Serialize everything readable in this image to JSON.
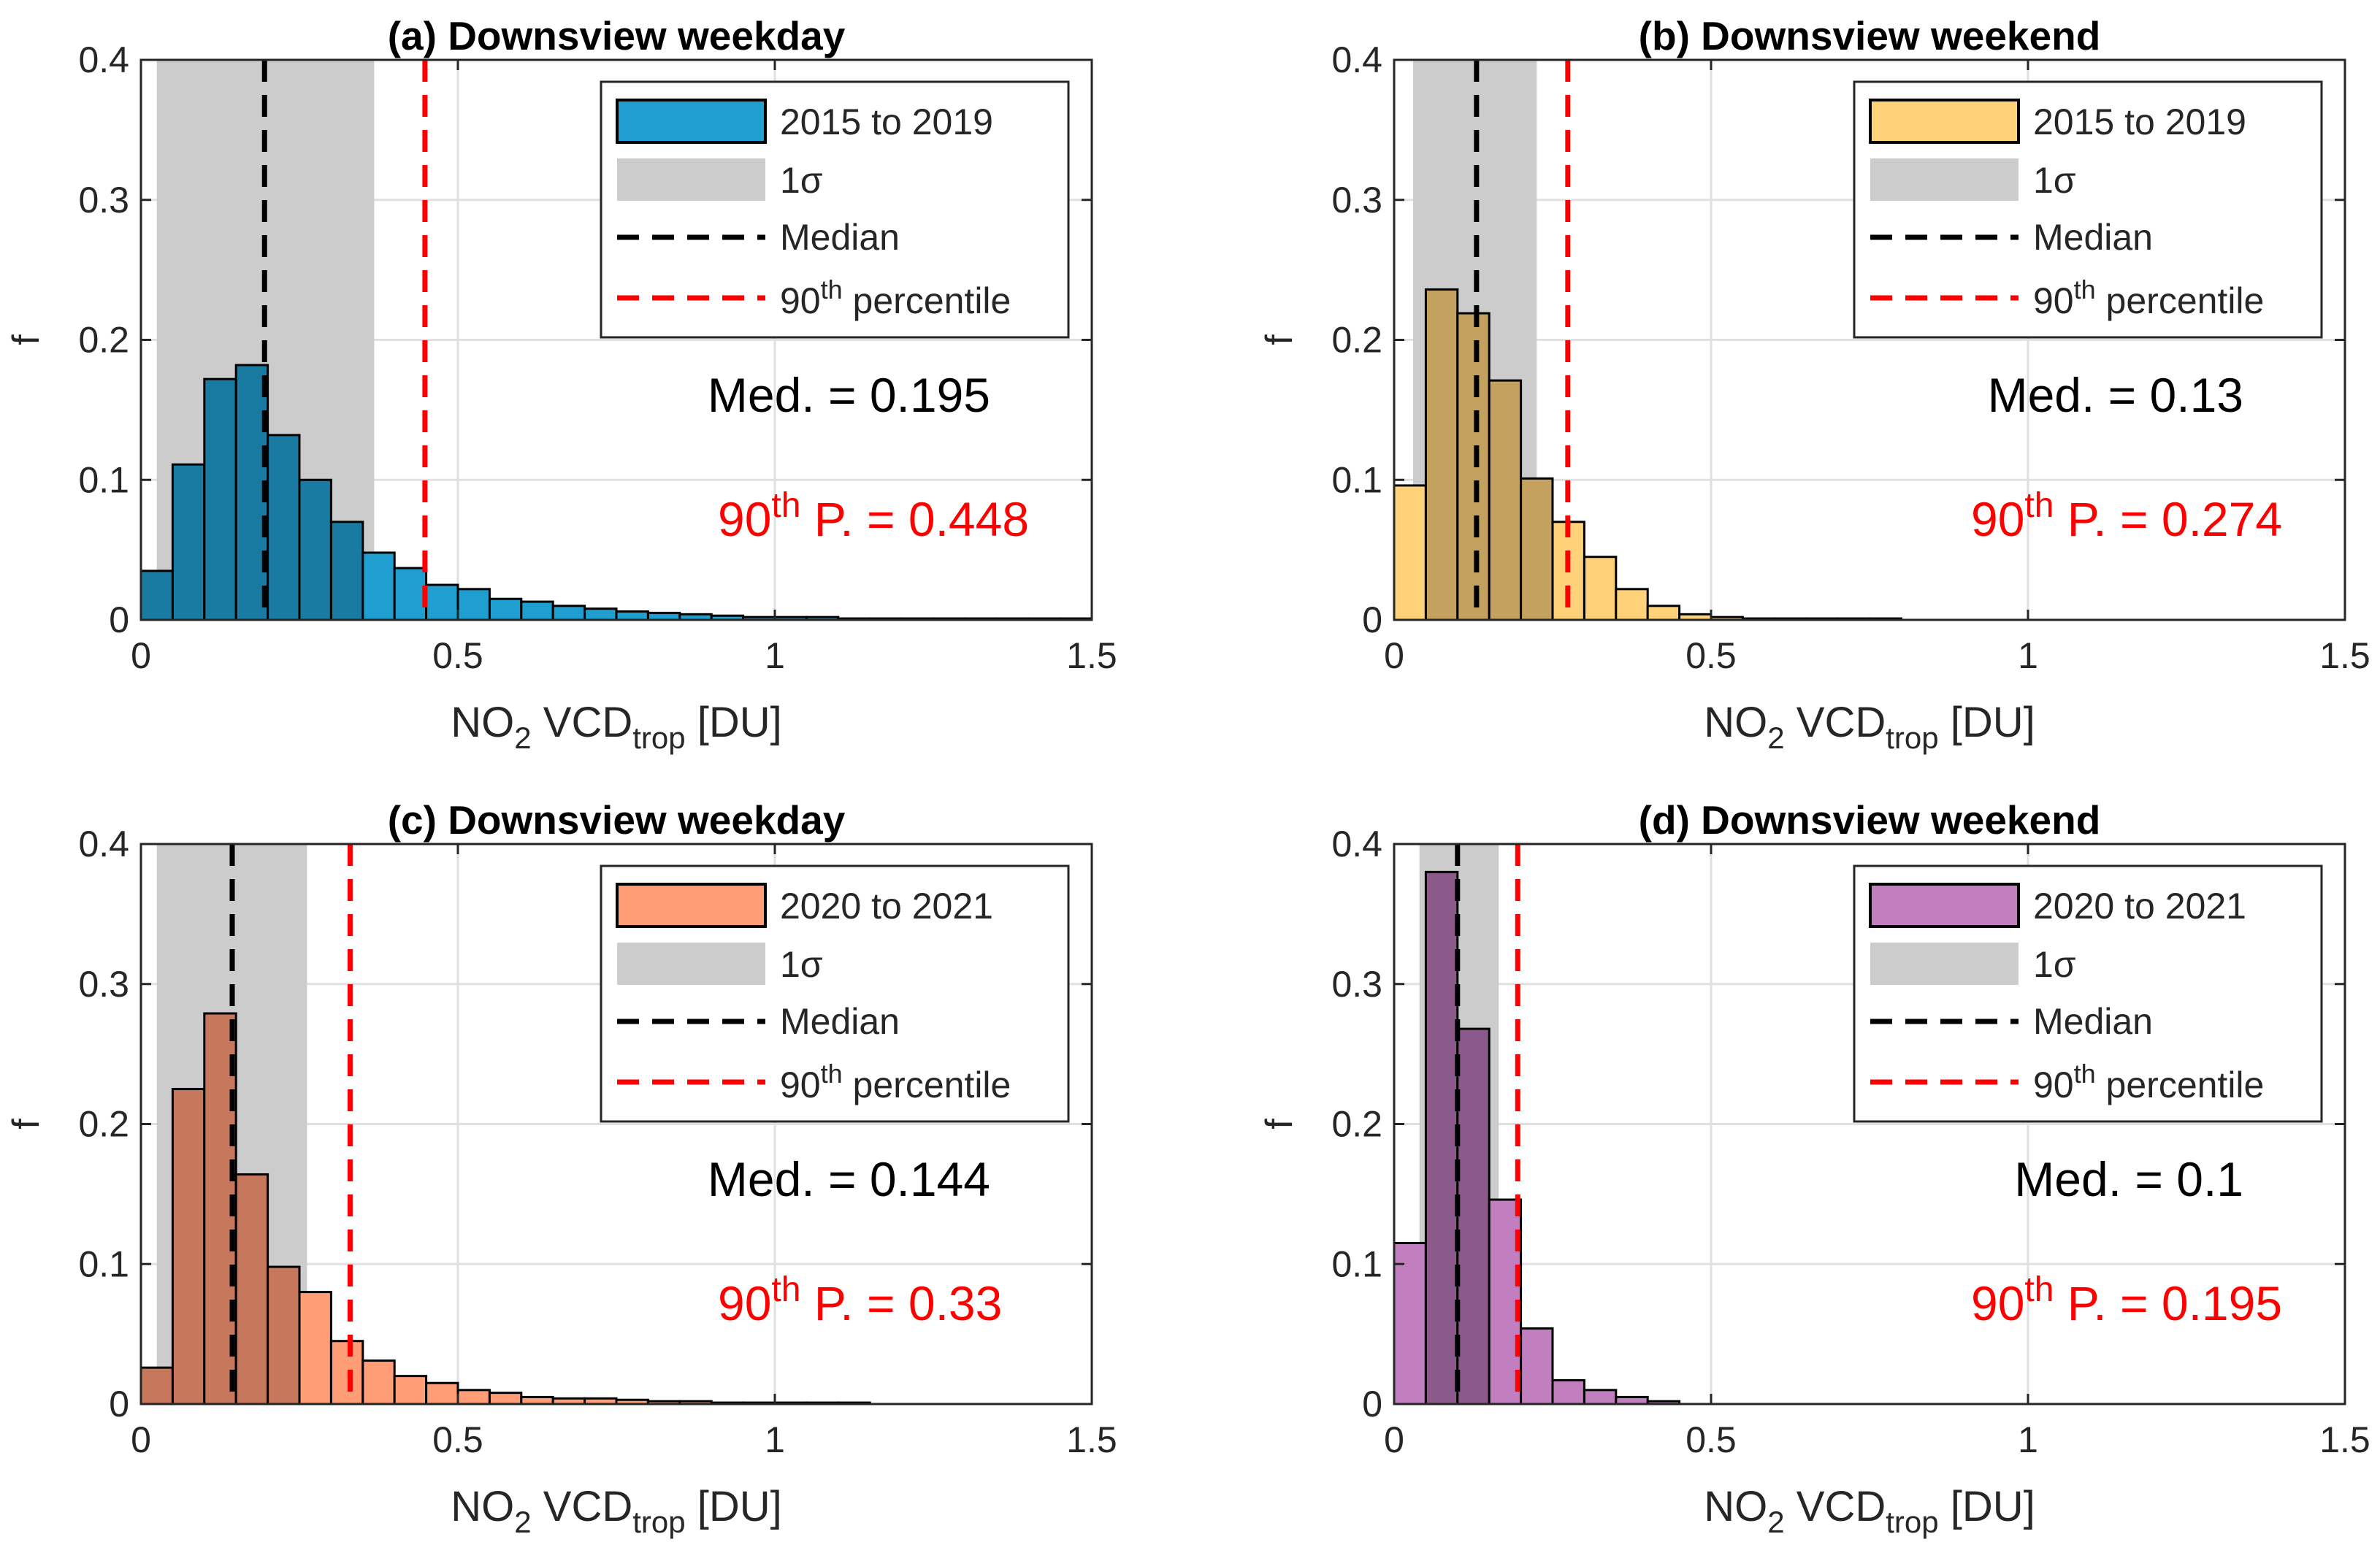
{
  "chart_data": [
    {
      "type": "bar",
      "title": "(a) Downsview weekday",
      "xlabel": {
        "main": "NO",
        "sub1": "2",
        "mid": " VCD",
        "sub2": "trop",
        "tail": " [DU]"
      },
      "ylabel": "f",
      "xlim": [
        0,
        1.5
      ],
      "ylim": [
        0,
        0.4
      ],
      "xticks": [
        "0",
        "0.5",
        "1",
        "1.5"
      ],
      "yticks": [
        "0",
        "0.1",
        "0.2",
        "0.3",
        "0.4"
      ],
      "bin_width": 0.05,
      "bin_start": 0,
      "values": [
        0.035,
        0.111,
        0.172,
        0.182,
        0.132,
        0.1,
        0.07,
        0.048,
        0.037,
        0.025,
        0.022,
        0.015,
        0.013,
        0.01,
        0.008,
        0.006,
        0.005,
        0.004,
        0.003,
        0.002,
        0.002,
        0.002,
        0.001,
        0.001,
        0.001,
        0.001,
        0.001,
        0.001,
        0.001,
        0.001
      ],
      "sigma_range": [
        0.025,
        0.368
      ],
      "median": 0.195,
      "p90": 0.448,
      "fill_color": "#1f9fd0",
      "dark_fill_color": "#1a7ba2",
      "legend": [
        {
          "key": "series",
          "label": "2015 to 2019"
        },
        {
          "key": "sigma",
          "label": "1σ"
        },
        {
          "key": "median",
          "label": "Median"
        },
        {
          "key": "p90",
          "label": "90",
          "sup": "th",
          "tail": " percentile"
        }
      ],
      "annotations": {
        "median_text": "Med. = 0.195",
        "p90_base": "90",
        "p90_sup": "th",
        "p90_tail": " P. = 0.448"
      }
    },
    {
      "type": "bar",
      "title": "(b) Downsview weekend",
      "xlabel": {
        "main": "NO",
        "sub1": "2",
        "mid": " VCD",
        "sub2": "trop",
        "tail": " [DU]"
      },
      "ylabel": "f",
      "xlim": [
        0,
        1.5
      ],
      "ylim": [
        0,
        0.4
      ],
      "xticks": [
        "0",
        "0.5",
        "1",
        "1.5"
      ],
      "yticks": [
        "0",
        "0.1",
        "0.2",
        "0.3",
        "0.4"
      ],
      "bin_width": 0.05,
      "bin_start": 0,
      "values": [
        0.096,
        0.236,
        0.219,
        0.171,
        0.101,
        0.07,
        0.045,
        0.022,
        0.01,
        0.004,
        0.002,
        0.001,
        0.001,
        0.001,
        0.001,
        0.001,
        0,
        0,
        0,
        0,
        0,
        0,
        0,
        0,
        0,
        0,
        0,
        0,
        0,
        0
      ],
      "sigma_range": [
        0.03,
        0.225
      ],
      "median": 0.13,
      "p90": 0.274,
      "fill_color": "#ffd27a",
      "dark_fill_color": "#c4a15e",
      "legend": [
        {
          "key": "series",
          "label": "2015 to 2019"
        },
        {
          "key": "sigma",
          "label": "1σ"
        },
        {
          "key": "median",
          "label": "Median"
        },
        {
          "key": "p90",
          "label": "90",
          "sup": "th",
          "tail": " percentile"
        }
      ],
      "annotations": {
        "median_text": "Med. = 0.13",
        "p90_base": "90",
        "p90_sup": "th",
        "p90_tail": " P. = 0.274"
      }
    },
    {
      "type": "bar",
      "title": "(c) Downsview weekday",
      "xlabel": {
        "main": "NO",
        "sub1": "2",
        "mid": " VCD",
        "sub2": "trop",
        "tail": " [DU]"
      },
      "ylabel": "f",
      "xlim": [
        0,
        1.5
      ],
      "ylim": [
        0,
        0.4
      ],
      "xticks": [
        "0",
        "0.5",
        "1",
        "1.5"
      ],
      "yticks": [
        "0",
        "0.1",
        "0.2",
        "0.3",
        "0.4"
      ],
      "bin_width": 0.05,
      "bin_start": 0,
      "values": [
        0.026,
        0.225,
        0.279,
        0.164,
        0.098,
        0.08,
        0.045,
        0.031,
        0.02,
        0.015,
        0.01,
        0.008,
        0.005,
        0.004,
        0.004,
        0.003,
        0.002,
        0.002,
        0.001,
        0.001,
        0.001,
        0.001,
        0.001,
        0,
        0,
        0,
        0,
        0,
        0,
        0
      ],
      "sigma_range": [
        0.025,
        0.262
      ],
      "median": 0.144,
      "p90": 0.33,
      "fill_color": "#ff9e76",
      "dark_fill_color": "#c6775c",
      "legend": [
        {
          "key": "series",
          "label": "2020 to 2021"
        },
        {
          "key": "sigma",
          "label": "1σ"
        },
        {
          "key": "median",
          "label": "Median"
        },
        {
          "key": "p90",
          "label": "90",
          "sup": "th",
          "tail": " percentile"
        }
      ],
      "annotations": {
        "median_text": "Med. = 0.144",
        "p90_base": "90",
        "p90_sup": "th",
        "p90_tail": " P. = 0.33"
      }
    },
    {
      "type": "bar",
      "title": "(d) Downsview weekend",
      "xlabel": {
        "main": "NO",
        "sub1": "2",
        "mid": " VCD",
        "sub2": "trop",
        "tail": " [DU]"
      },
      "ylabel": "f",
      "xlim": [
        0,
        1.5
      ],
      "ylim": [
        0,
        0.4
      ],
      "xticks": [
        "0",
        "0.5",
        "1",
        "1.5"
      ],
      "yticks": [
        "0",
        "0.1",
        "0.2",
        "0.3",
        "0.4"
      ],
      "bin_width": 0.05,
      "bin_start": 0,
      "values": [
        0.115,
        0.38,
        0.268,
        0.146,
        0.054,
        0.017,
        0.01,
        0.005,
        0.002,
        0,
        0,
        0,
        0,
        0,
        0,
        0,
        0,
        0,
        0,
        0,
        0,
        0,
        0,
        0,
        0,
        0,
        0,
        0,
        0,
        0
      ],
      "sigma_range": [
        0.04,
        0.165
      ],
      "median": 0.1,
      "p90": 0.195,
      "fill_color": "#c17fc0",
      "dark_fill_color": "#8b5a8b",
      "legend": [
        {
          "key": "series",
          "label": "2020 to 2021"
        },
        {
          "key": "sigma",
          "label": "1σ"
        },
        {
          "key": "median",
          "label": "Median"
        },
        {
          "key": "p90",
          "label": "90",
          "sup": "th",
          "tail": " percentile"
        }
      ],
      "annotations": {
        "median_text": "Med. = 0.1",
        "p90_base": "90",
        "p90_sup": "th",
        "p90_tail": " P. = 0.195"
      }
    }
  ],
  "colors": {
    "sigma_band": "#cccccc",
    "grid": "#e0e0e0",
    "median_line": "#000000",
    "p90_line": "#ff0000",
    "annotation_red": "#ff0000"
  }
}
